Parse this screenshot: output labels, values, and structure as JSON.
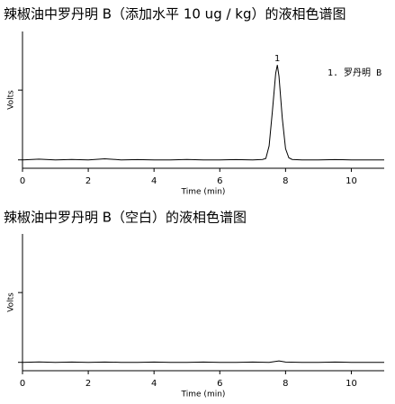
{
  "chart_data": [
    {
      "type": "line",
      "title": "辣椒油中罗丹明 B（添加水平 10 ug / kg）的液相色谱图",
      "x_label": "Time (min)",
      "y_label": "Volts",
      "color": "#000000",
      "peak_label": "1",
      "annotation": "1. 罗丹明 B",
      "x": [
        0,
        0.5,
        1,
        1.5,
        2,
        2.5,
        3,
        3.5,
        4,
        4.5,
        5,
        5.5,
        6,
        6.5,
        7,
        7.3,
        7.4,
        7.5,
        7.6,
        7.7,
        7.75,
        7.8,
        7.9,
        8.0,
        8.1,
        8.2,
        8.5,
        9,
        9.5,
        10,
        10.5,
        11
      ],
      "values": [
        0,
        0.005,
        0,
        0.003,
        0,
        0.008,
        0,
        0.002,
        0,
        0,
        0.003,
        0,
        0,
        0.002,
        0,
        0.003,
        0.01,
        0.1,
        0.35,
        0.62,
        0.68,
        0.6,
        0.3,
        0.08,
        0.015,
        0.003,
        0,
        0,
        0.002,
        0,
        0,
        0
      ],
      "xlim": [
        0,
        11
      ],
      "xticks": [
        0,
        2,
        4,
        6,
        8,
        10
      ],
      "ylim": [
        -0.06,
        0.92
      ],
      "yticks": [
        0,
        0.5
      ]
    },
    {
      "type": "line",
      "title": "辣椒油中罗丹明 B（空白）的液相色谱图",
      "x_label": "Time (min)",
      "y_label": "Volts",
      "color": "#000000",
      "x": [
        0,
        0.5,
        1,
        1.5,
        2,
        2.5,
        3,
        3.5,
        4,
        4.5,
        5,
        5.5,
        6,
        6.5,
        7,
        7.5,
        7.8,
        8,
        8.5,
        9,
        9.5,
        10,
        10.5,
        11
      ],
      "values": [
        0,
        0.003,
        0,
        0.002,
        0,
        0.002,
        0,
        0,
        0.002,
        0,
        0,
        0.002,
        0,
        0,
        0.002,
        0,
        0.01,
        0.002,
        0,
        0,
        0.002,
        0,
        0,
        0
      ],
      "xlim": [
        0,
        11
      ],
      "xticks": [
        0,
        2,
        4,
        6,
        8,
        10
      ],
      "ylim": [
        -0.06,
        0.92
      ],
      "yticks": [
        0,
        0.5
      ]
    }
  ]
}
